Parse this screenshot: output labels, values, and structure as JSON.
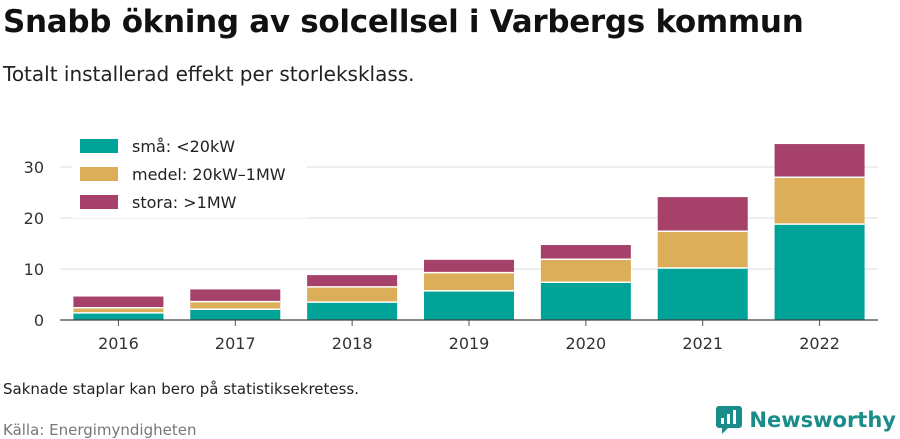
{
  "title": "Snabb ökning av solcellsel i Varbergs kommun",
  "subtitle": "Totalt installerad effekt per storleksklass.",
  "note": "Saknade staplar kan bero på statistiksekretess.",
  "source": "Källa: Energimyndigheten",
  "brand": {
    "name": "Newsworthy",
    "icon": "newsworthy-logo-icon",
    "color": "#1a8c8a"
  },
  "chart_data": {
    "type": "bar",
    "stacked": true,
    "categories": [
      "2016",
      "2017",
      "2018",
      "2019",
      "2020",
      "2021",
      "2022"
    ],
    "series": [
      {
        "name": "små: <20kW",
        "color": "#00a398",
        "values": [
          1.4,
          2.1,
          3.5,
          5.7,
          7.4,
          10.2,
          18.8
        ]
      },
      {
        "name": "medel: 20kW–1MW",
        "color": "#dcae59",
        "values": [
          1.0,
          1.5,
          3.0,
          3.6,
          4.5,
          7.2,
          9.2
        ]
      },
      {
        "name": "stora: >1MW",
        "color": "#a6426a",
        "values": [
          2.2,
          2.4,
          2.3,
          2.5,
          2.8,
          6.7,
          6.5
        ]
      }
    ],
    "ylim": [
      0,
      36
    ],
    "yticks": [
      0,
      10,
      20,
      30
    ],
    "grid": true,
    "legend": "top-left",
    "xlabel": "",
    "ylabel": ""
  }
}
